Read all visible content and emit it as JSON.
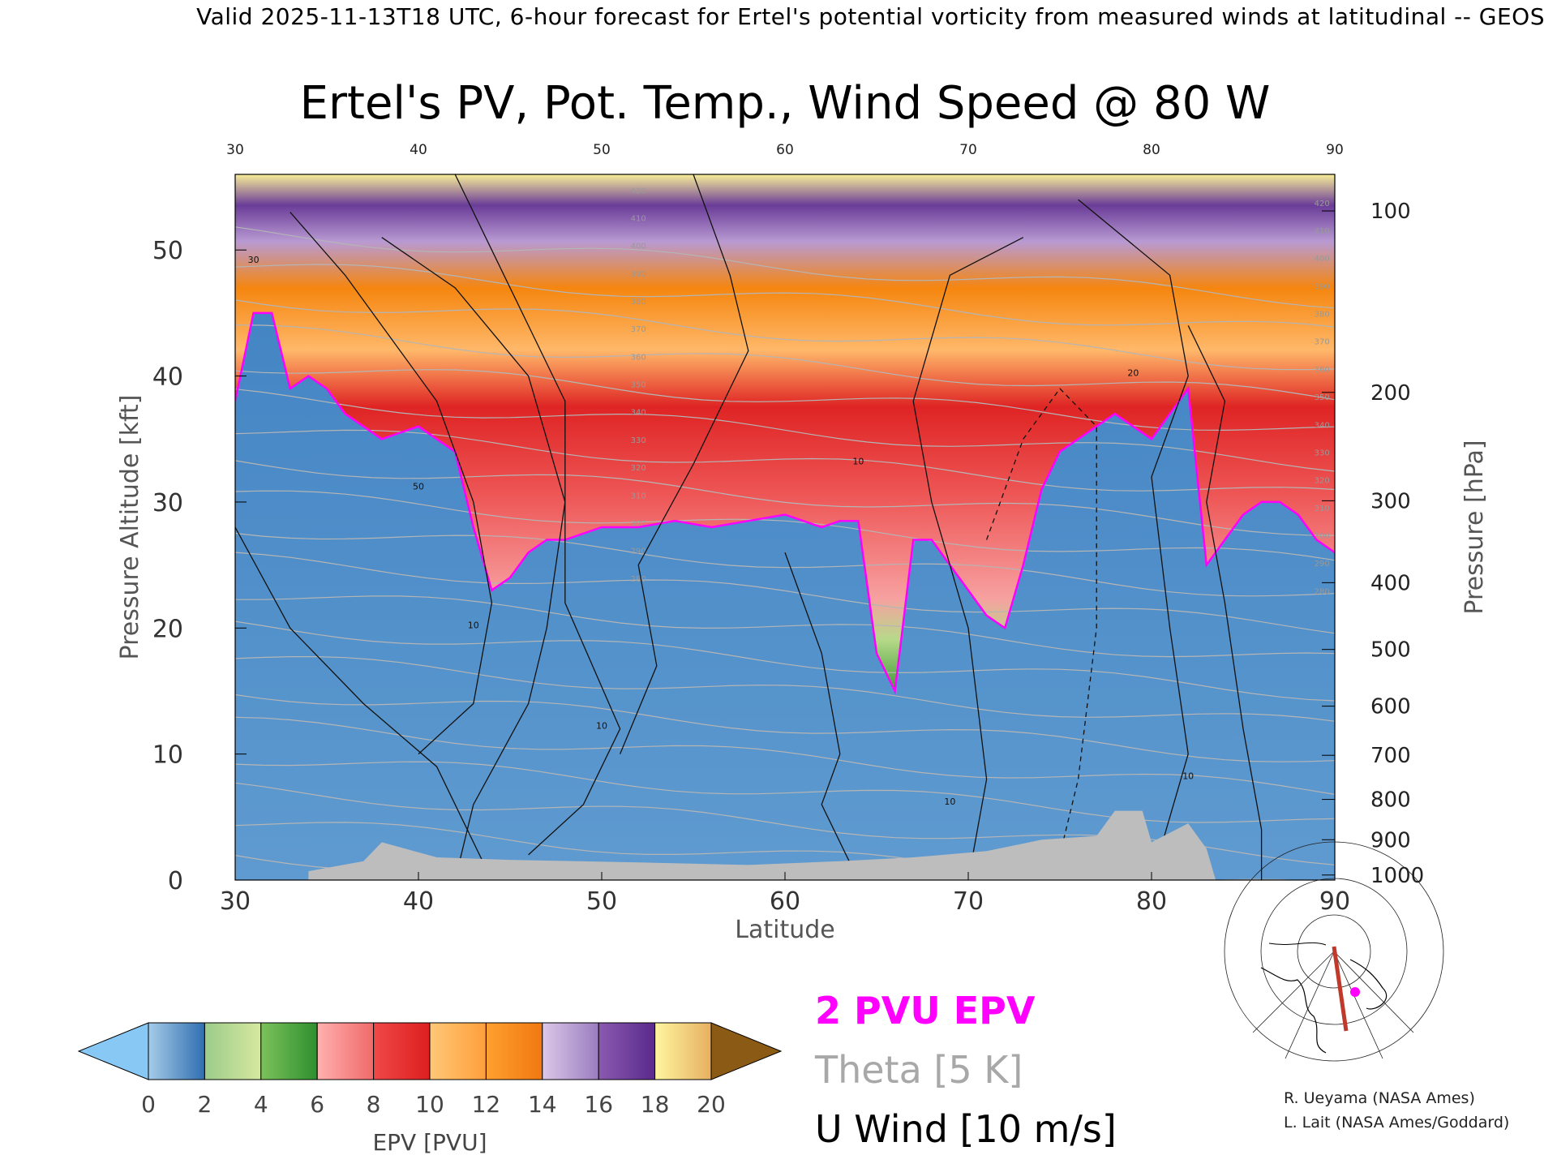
{
  "header": {
    "valid_line": "Valid 2025-11-13T18 UTC, 6-hour forecast for Ertel's potential vorticity from measured winds at latitudinal -- GEOS"
  },
  "chart_data": {
    "type": "heatmap",
    "title": "Ertel's PV, Pot. Temp., Wind Speed @ 80 W",
    "xlabel": "Latitude",
    "ylabel": "Pressure Altitude [kft]",
    "y2label": "Pressure [hPa]",
    "xlim": [
      30,
      90
    ],
    "ylim": [
      0,
      56
    ],
    "xticks": [
      "30",
      "40",
      "50",
      "60",
      "70",
      "80",
      "90"
    ],
    "top_xticks": [
      "30",
      "40",
      "50",
      "60",
      "70",
      "80",
      "90"
    ],
    "yticks": [
      "0",
      "10",
      "20",
      "30",
      "40",
      "50"
    ],
    "pressure_ticks": [
      {
        "label": "100",
        "kft": 53.1
      },
      {
        "label": "200",
        "kft": 38.7
      },
      {
        "label": "300",
        "kft": 30.1
      },
      {
        "label": "400",
        "kft": 23.6
      },
      {
        "label": "500",
        "kft": 18.3
      },
      {
        "label": "600",
        "kft": 13.8
      },
      {
        "label": "700",
        "kft": 9.9
      },
      {
        "label": "800",
        "kft": 6.4
      },
      {
        "label": "900",
        "kft": 3.2
      },
      {
        "label": "1000",
        "kft": 0.4
      }
    ],
    "colorbar": {
      "label": "EPV [PVU]",
      "tick_labels": [
        "0",
        "2",
        "4",
        "6",
        "8",
        "10",
        "12",
        "14",
        "16",
        "18",
        "20"
      ],
      "under_color": "#87c8f5",
      "over_color": "#8b5a14",
      "bands": [
        {
          "from": 0,
          "to": 2,
          "start_color": "#a6cbe8",
          "end_color": "#2f6fb0"
        },
        {
          "from": 2,
          "to": 4,
          "start_color": "#9bcc8a",
          "end_color": "#d7e8a0"
        },
        {
          "from": 4,
          "to": 6,
          "start_color": "#7cc25b",
          "end_color": "#2e8f2e"
        },
        {
          "from": 6,
          "to": 8,
          "start_color": "#ffb0b0",
          "end_color": "#f06a6a"
        },
        {
          "from": 8,
          "to": 10,
          "start_color": "#f04848",
          "end_color": "#dc1f1f"
        },
        {
          "from": 10,
          "to": 12,
          "start_color": "#ffc878",
          "end_color": "#ff9e3a"
        },
        {
          "from": 12,
          "to": 14,
          "start_color": "#ffa030",
          "end_color": "#f07810"
        },
        {
          "from": 14,
          "to": 16,
          "start_color": "#dcc8e8",
          "end_color": "#9a7cc0"
        },
        {
          "from": 16,
          "to": 18,
          "start_color": "#8a5ab0",
          "end_color": "#5a2a8c"
        },
        {
          "from": 18,
          "to": 20,
          "start_color": "#fff5a0",
          "end_color": "#e6b060"
        }
      ]
    },
    "legend": [
      {
        "label": "2 PVU EPV",
        "color": "#ff00ff"
      },
      {
        "label": "Theta [5 K]",
        "color": "#a0a0a0"
      },
      {
        "label": "U Wind [10 m/s]",
        "color": "#000000"
      }
    ],
    "pv2_tropopause": {
      "lat": [
        30,
        31,
        32,
        33,
        34,
        35,
        36,
        37,
        38,
        39,
        40,
        41,
        42,
        43,
        44,
        45,
        46,
        47,
        48,
        50,
        52,
        54,
        56,
        58,
        60,
        61,
        62,
        63,
        64,
        65,
        66,
        67,
        68,
        69,
        70,
        71,
        72,
        73,
        74,
        75,
        76,
        77,
        78,
        79,
        80,
        81,
        82,
        83,
        84,
        85,
        86,
        87,
        88,
        89,
        90
      ],
      "kft": [
        38,
        45,
        45,
        39,
        40,
        39,
        37,
        36,
        35,
        35.5,
        36,
        35,
        34,
        28,
        23,
        24,
        26,
        27,
        27,
        28,
        28,
        28.5,
        28,
        28.5,
        29,
        28.5,
        28,
        28.5,
        28.5,
        18,
        15,
        27,
        27,
        25,
        23,
        21,
        20,
        25,
        31,
        34,
        35,
        36,
        37,
        36,
        35,
        37,
        39,
        25,
        27,
        29,
        30,
        30,
        29,
        27,
        26
      ]
    },
    "u_wind_contour_labels": [
      "30",
      "50",
      "10",
      "10",
      "10",
      "10",
      "20",
      "10"
    ],
    "theta_contour_labels": [
      "420",
      "410",
      "400",
      "390",
      "380",
      "370",
      "360",
      "350",
      "340",
      "330",
      "320",
      "310",
      "300",
      "290",
      "280"
    ],
    "map_inset": {
      "section_longitude": "80 W",
      "lat_range": [
        30,
        90
      ]
    }
  },
  "credits": [
    "R. Ueyama (NASA Ames)",
    "L. Lait (NASA Ames/Goddard)"
  ]
}
